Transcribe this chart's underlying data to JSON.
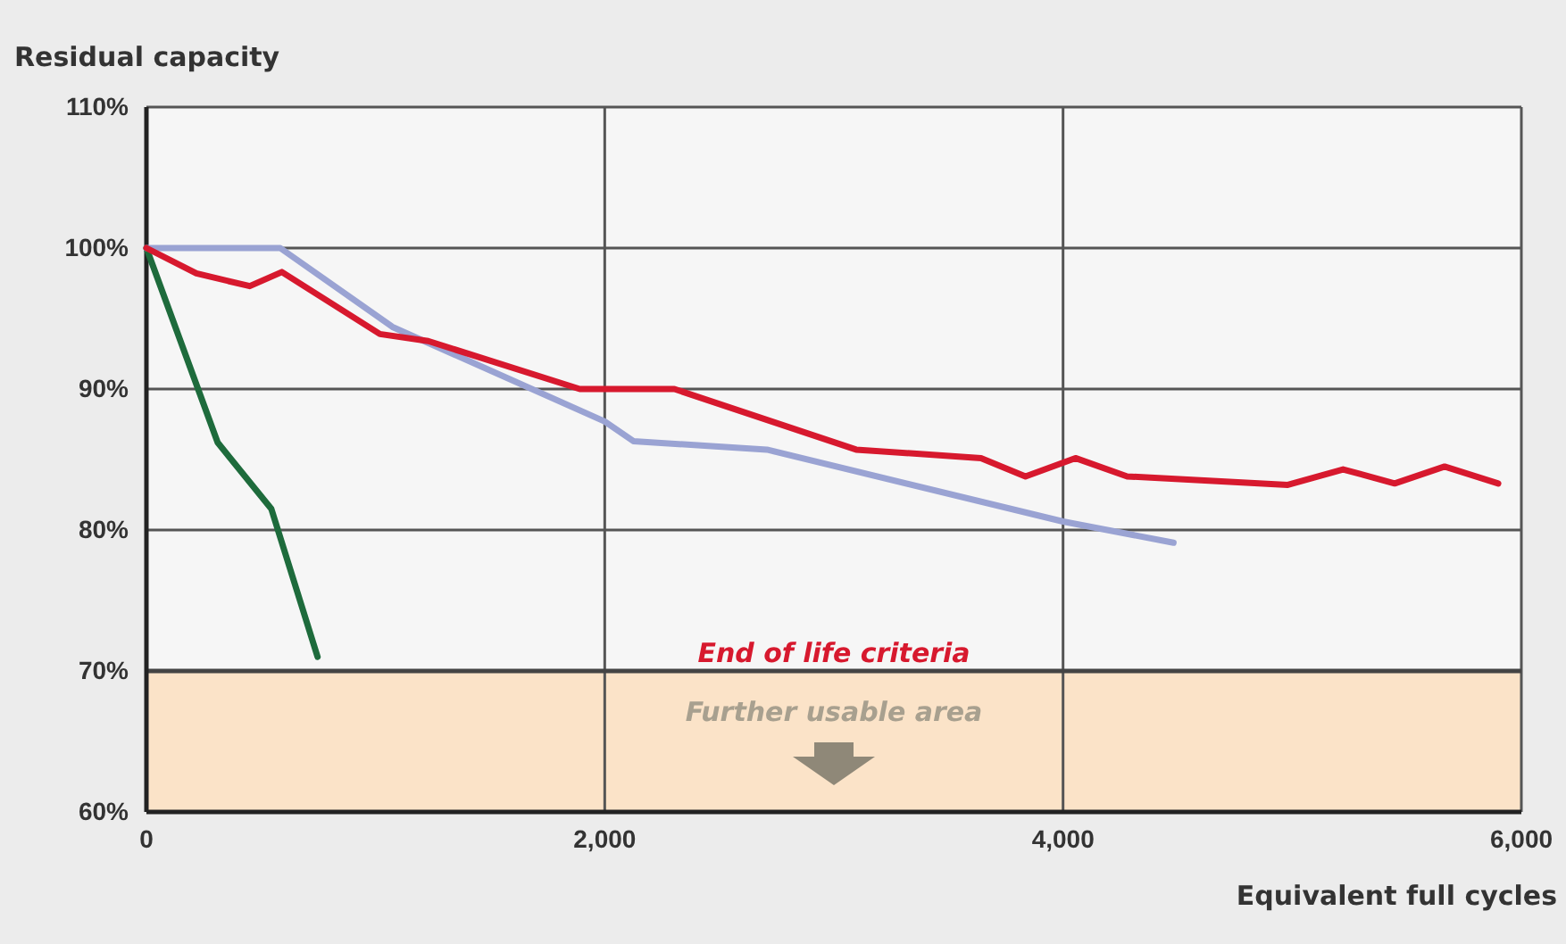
{
  "chart_data": {
    "type": "line",
    "ylabel": "Residual capacity",
    "xlabel": "Equivalent full cycles",
    "xlim": [
      0,
      6000
    ],
    "xticks": [
      {
        "value": 0,
        "label": "0"
      },
      {
        "value": 2000,
        "label": "2,000"
      },
      {
        "value": 4000,
        "label": "4,000"
      },
      {
        "value": 6000,
        "label": "6,000"
      }
    ],
    "ylim": [
      60,
      110
    ],
    "yticks": [
      {
        "value": 60,
        "label": "60%"
      },
      {
        "value": 70,
        "label": "70%"
      },
      {
        "value": 80,
        "label": "80%"
      },
      {
        "value": 90,
        "label": "90%"
      },
      {
        "value": 100,
        "label": "100%"
      },
      {
        "value": 110,
        "label": "110%"
      }
    ],
    "grid": true,
    "marker": "none",
    "line_style": "solid",
    "series": [
      {
        "color": "#1e6b3c",
        "x": [
          0,
          311,
          545,
          747
        ],
        "values": [
          100,
          86.2,
          81.5,
          71
        ]
      },
      {
        "color": "#9aa3d3",
        "x": [
          0,
          584,
          1074,
          2000,
          2125,
          2708,
          4000,
          4482
        ],
        "values": [
          100,
          100,
          94.4,
          87.7,
          86.3,
          85.7,
          80.6,
          79.1
        ]
      },
      {
        "color": "#d7192e",
        "x": [
          0,
          218,
          451,
          591,
          1019,
          1230,
          1891,
          2304,
          3097,
          3642,
          3836,
          4054,
          4280,
          4981,
          5222,
          5447,
          5665,
          5899
        ],
        "values": [
          100,
          98.2,
          97.3,
          98.3,
          93.9,
          93.4,
          90,
          90,
          85.7,
          85.1,
          83.8,
          85.1,
          83.8,
          83.2,
          84.3,
          83.3,
          84.5,
          83.3
        ]
      }
    ],
    "ref_lines": [
      {
        "axis": "y",
        "value": 70,
        "label": "End of life criteria"
      }
    ],
    "bands": [
      {
        "axis": "y",
        "from": 60,
        "to": 70,
        "label": "Further usable area",
        "color": "#fbe3c8"
      }
    ]
  }
}
